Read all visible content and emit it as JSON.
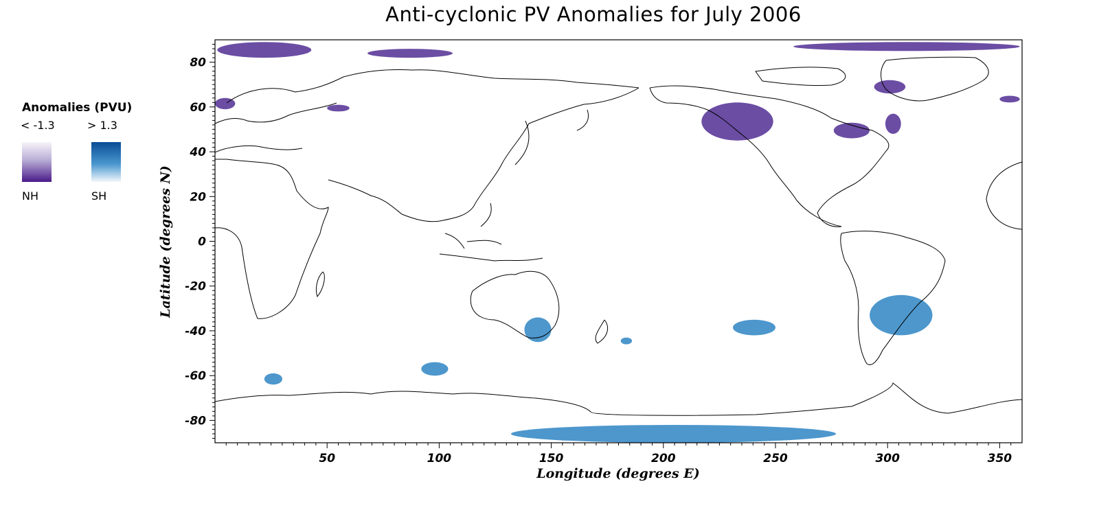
{
  "title": "Anti-cyclonic PV Anomalies for July 2006",
  "legend": {
    "title": "Anomalies (PVU)",
    "nh_threshold": "< -1.3",
    "sh_threshold": "> 1.3",
    "nh_label": "NH",
    "sh_label": "SH",
    "nh_color": "#5b3a9a",
    "sh_color": "#3a8cc8"
  },
  "axes": {
    "xlabel": "Longitude (degrees E)",
    "ylabel": "Latitude (degrees N)",
    "xlim": [
      0,
      360
    ],
    "ylim": [
      -90,
      90
    ],
    "xticks": [
      50,
      100,
      150,
      200,
      250,
      300,
      350
    ],
    "yticks": [
      80,
      60,
      40,
      20,
      0,
      -20,
      -40,
      -60,
      -80
    ]
  },
  "anomalies_nh": [
    {
      "region": "arctic-west",
      "lon_min": 1,
      "lon_max": 43,
      "lat_min": 82,
      "lat_max": 89
    },
    {
      "region": "siberia-north",
      "lon_min": 68,
      "lon_max": 106,
      "lat_min": 82,
      "lat_max": 86
    },
    {
      "region": "arctic-east",
      "lon_min": 258,
      "lon_max": 359,
      "lat_min": 85,
      "lat_max": 89
    },
    {
      "region": "scandinavia",
      "lon_min": 0,
      "lon_max": 9,
      "lat_min": 59,
      "lat_max": 64
    },
    {
      "region": "ural",
      "lon_min": 50,
      "lon_max": 60,
      "lat_min": 58,
      "lat_max": 61
    },
    {
      "region": "alaska-gulf",
      "lon_min": 217,
      "lon_max": 249,
      "lat_min": 45,
      "lat_max": 62
    },
    {
      "region": "hudson",
      "lon_min": 276,
      "lon_max": 292,
      "lat_min": 46,
      "lat_max": 53
    },
    {
      "region": "labrador",
      "lon_min": 299,
      "lon_max": 306,
      "lat_min": 48,
      "lat_max": 57
    },
    {
      "region": "baffin",
      "lon_min": 294,
      "lon_max": 308,
      "lat_min": 66,
      "lat_max": 72
    },
    {
      "region": "greenland-east",
      "lon_min": 350,
      "lon_max": 359,
      "lat_min": 62,
      "lat_max": 65
    }
  ],
  "anomalies_sh": [
    {
      "region": "southeast-australia",
      "lon_min": 138,
      "lon_max": 150,
      "lat_min": -45,
      "lat_max": -34
    },
    {
      "region": "south-america",
      "lon_min": 292,
      "lon_max": 320,
      "lat_min": -42,
      "lat_max": -24
    },
    {
      "region": "south-pacific",
      "lon_min": 231,
      "lon_max": 250,
      "lat_min": -42,
      "lat_max": -35
    },
    {
      "region": "tasman-east",
      "lon_min": 181,
      "lon_max": 186,
      "lat_min": -46,
      "lat_max": -43
    },
    {
      "region": "southern-indian",
      "lon_min": 92,
      "lon_max": 104,
      "lat_min": -60,
      "lat_max": -54
    },
    {
      "region": "south-atlantic",
      "lon_min": 22,
      "lon_max": 30,
      "lat_min": -64,
      "lat_max": -59
    },
    {
      "region": "antarctic",
      "lon_min": 132,
      "lon_max": 277,
      "lat_min": -90,
      "lat_max": -82
    }
  ]
}
